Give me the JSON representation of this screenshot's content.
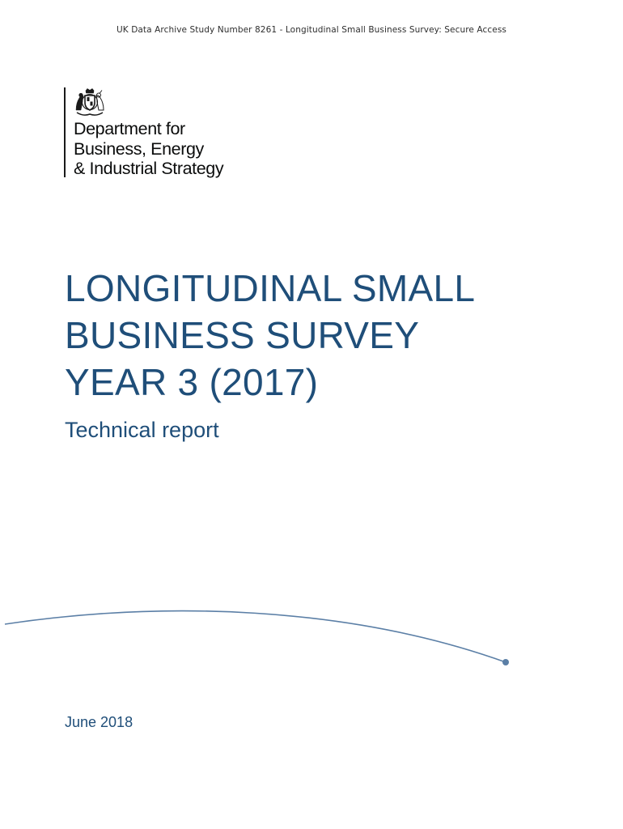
{
  "header_note": "UK Data Archive Study Number 8261 - Longitudinal Small Business Survey: Secure Access",
  "logo": {
    "icon": "royal-coat-of-arms-icon",
    "department_lines": [
      "Department for",
      "Business, Energy",
      "& Industrial Strategy"
    ]
  },
  "title_lines": [
    "LONGITUDINAL SMALL",
    "BUSINESS SURVEY",
    "YEAR 3 (2017)"
  ],
  "subtitle": "Technical report",
  "date": "June 2018",
  "colors": {
    "title": "#1f4e79",
    "arc": "#5b7fa6",
    "text_dark": "#0b0c0c"
  }
}
